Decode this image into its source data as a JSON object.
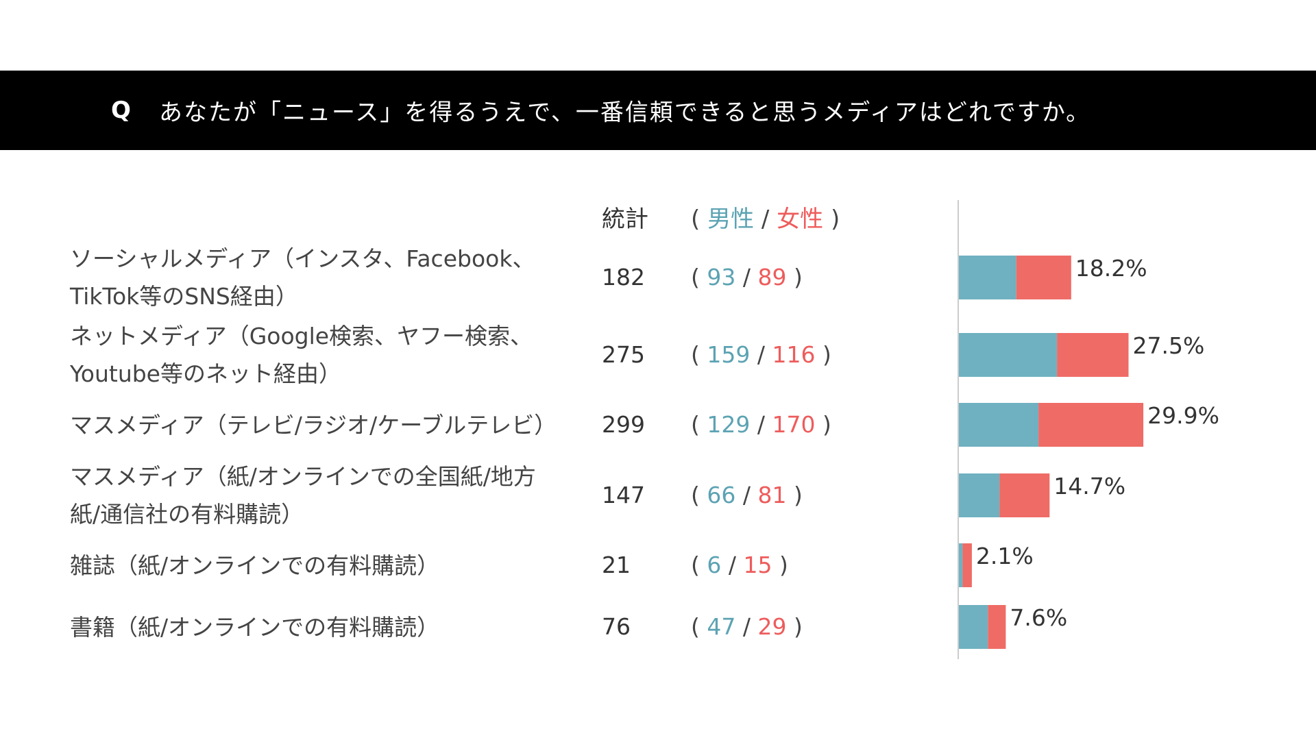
{
  "header": {
    "q_mark": "Q",
    "question": "あなたが「ニュース」を得るうえで、一番信頼できると思うメディアはどれですか。"
  },
  "columns": {
    "total_label": "統計",
    "open_paren": "(",
    "male_label": "男性",
    "slash": "/",
    "female_label": "女性",
    "close_paren": ")"
  },
  "colors": {
    "male": "#6fb1c0",
    "female": "#ef6b66",
    "axis": "#cccccc"
  },
  "chart_data": {
    "type": "bar",
    "orientation": "horizontal",
    "stacked": true,
    "title": "あなたが「ニュース」を得るうえで、一番信頼できると思うメディアはどれですか。",
    "categories": [
      [
        "ソーシャルメディア（インスタ、Facebook、",
        "TikTok等のSNS経由）"
      ],
      [
        "ネットメディア（Google検索、ヤフー検索、",
        "Youtube等のネット経由）"
      ],
      [
        "マスメディア（テレビ/ラジオ/ケーブルテレビ）"
      ],
      [
        "マスメディア（紙/オンラインでの全国紙/地方",
        "紙/通信社の有料購読）"
      ],
      [
        "雑誌（紙/オンラインでの有料購読）"
      ],
      [
        "書籍（紙/オンラインでの有料購読）"
      ]
    ],
    "totals": [
      182,
      275,
      299,
      147,
      21,
      76
    ],
    "series": [
      {
        "name": "男性",
        "values": [
          93,
          159,
          129,
          66,
          6,
          47
        ]
      },
      {
        "name": "女性",
        "values": [
          89,
          116,
          170,
          81,
          15,
          29
        ]
      }
    ],
    "percent_labels": [
      "18.2%",
      "27.5%",
      "29.9%",
      "14.7%",
      "2.1%",
      "7.6%"
    ]
  }
}
